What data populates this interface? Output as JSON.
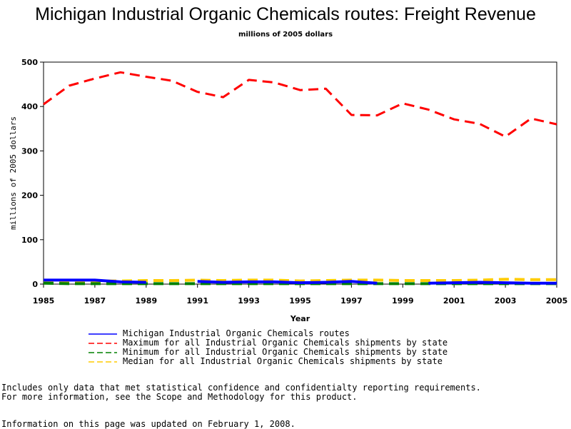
{
  "chart_data": {
    "type": "line",
    "title": "Michigan Industrial Organic Chemicals routes: Freight Revenue",
    "subtitle": "millions of 2005 dollars",
    "xlabel": "Year",
    "ylabel": "millions of 2005 dollars",
    "xlim": [
      1985,
      2005
    ],
    "ylim": [
      0,
      500
    ],
    "x_ticks": [
      "1985",
      "1987",
      "1989",
      "1991",
      "1993",
      "1995",
      "1997",
      "1999",
      "2001",
      "2003",
      "2005"
    ],
    "y_ticks": [
      "0",
      "100",
      "200",
      "300",
      "400",
      "500"
    ],
    "grid": false,
    "legend_position": "bottom",
    "x": [
      1985,
      1986,
      1987,
      1988,
      1989,
      1990,
      1991,
      1992,
      1993,
      1994,
      1995,
      1996,
      1997,
      1998,
      1999,
      2000,
      2001,
      2002,
      2003,
      2004,
      2005
    ],
    "series": [
      {
        "name": "Michigan Industrial Organic Chemicals routes",
        "color": "#0000ff",
        "dash": "solid",
        "values": [
          9,
          9,
          9,
          5,
          4,
          null,
          6,
          4,
          5,
          5,
          3,
          4,
          6,
          2,
          null,
          2,
          3,
          4,
          3,
          2,
          2
        ]
      },
      {
        "name": "Maximum for all Industrial Organic Chemicals shipments by state",
        "color": "#ff0000",
        "dash": "dashed",
        "values": [
          405,
          447,
          463,
          477,
          467,
          458,
          433,
          421,
          460,
          454,
          437,
          440,
          381,
          380,
          407,
          393,
          371,
          361,
          332,
          373,
          360
        ]
      },
      {
        "name": "Minimum for all Industrial Organic Chemicals shipments by state",
        "color": "#008000",
        "dash": "dashed",
        "values": [
          2,
          1,
          1,
          1,
          1,
          1,
          1,
          1,
          1,
          1,
          1,
          1,
          1,
          1,
          1,
          1,
          1,
          1,
          1,
          1,
          1
        ]
      },
      {
        "name": "Median for all Industrial Organic Chemicals shipments by state",
        "color": "#ffcc00",
        "dash": "dashed",
        "values": [
          7,
          7,
          7,
          7,
          8,
          8,
          9,
          8,
          9,
          9,
          7,
          8,
          9,
          9,
          8,
          8,
          8,
          9,
          11,
          10,
          10
        ]
      }
    ]
  },
  "notes": {
    "line1": "Includes only data that met statistical confidence and confidentialty reporting requirements.",
    "line2": "For more information, see the Scope and Methodology for this product.",
    "updated": "Information on this page was updated on February 1, 2008."
  }
}
